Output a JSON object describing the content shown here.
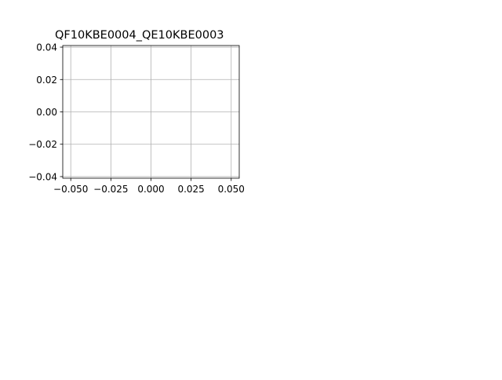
{
  "chart_data": {
    "type": "line",
    "title": "QF10KBE0004_QE10KBE0003",
    "xlabel": "",
    "ylabel": "",
    "xlim": [
      -0.055,
      0.055
    ],
    "ylim": [
      -0.041,
      0.041
    ],
    "xticks": [
      -0.05,
      -0.025,
      0.0,
      0.025,
      0.05
    ],
    "xtick_labels": [
      "−0.050",
      "−0.025",
      "0.000",
      "0.025",
      "0.050"
    ],
    "yticks": [
      -0.04,
      -0.02,
      0.0,
      0.02,
      0.04
    ],
    "ytick_labels": [
      "−0.04",
      "−0.02",
      "0.00",
      "0.02",
      "0.04"
    ],
    "grid": true,
    "series": [
      {
        "x": [],
        "y": []
      }
    ],
    "colors": {
      "grid": "#b0b0b0",
      "axes": "#000000",
      "background": "#ffffff"
    }
  }
}
